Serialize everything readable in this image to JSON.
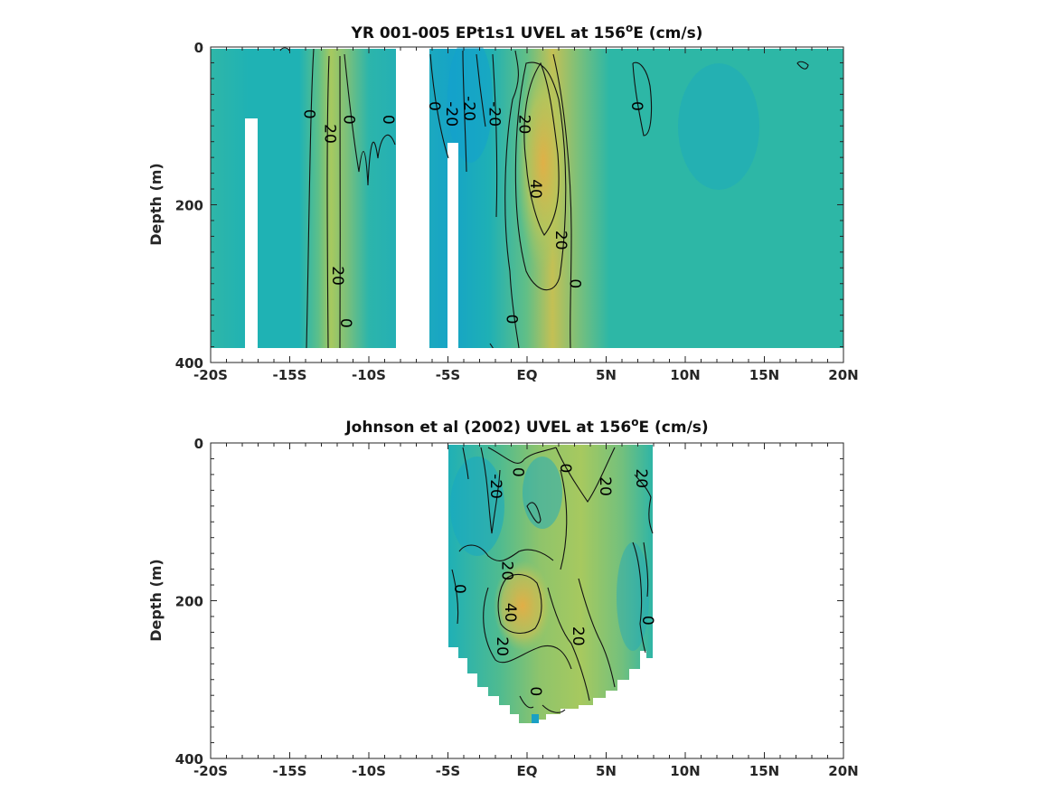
{
  "chart_data": [
    {
      "type": "heatmap",
      "title": "YR 001-005 EPt1s1 UVEL at 156",
      "title_sup": "o",
      "title_tail": "E (cm/s)",
      "ylabel": "Depth (m)",
      "xlabel": "",
      "xlim": [
        -20,
        20
      ],
      "ylim": [
        0,
        400
      ],
      "y_reversed": true,
      "x_ticks": [
        {
          "v": -20,
          "label": "-20S"
        },
        {
          "v": -15,
          "label": "-15S"
        },
        {
          "v": -10,
          "label": "-10S"
        },
        {
          "v": -5,
          "label": "-5S"
        },
        {
          "v": 0,
          "label": "EQ"
        },
        {
          "v": 5,
          "label": "5N"
        },
        {
          "v": 10,
          "label": "10N"
        },
        {
          "v": 15,
          "label": "15N"
        },
        {
          "v": 20,
          "label": "20N"
        }
      ],
      "y_ticks": [
        {
          "v": 0,
          "label": "0"
        },
        {
          "v": 200,
          "label": "200"
        },
        {
          "v": 400,
          "label": "400"
        }
      ],
      "contour_levels": [
        -20,
        0,
        20,
        40
      ],
      "data_extent": {
        "x": [
          -20,
          20
        ],
        "depth": [
          0,
          380
        ]
      },
      "missing_regions": [
        {
          "x": [
            -17.9,
            -17.1
          ],
          "depth": [
            90,
            380
          ]
        },
        {
          "x": [
            -8.3,
            -6.2
          ],
          "depth": [
            0,
            380
          ]
        },
        {
          "x": [
            -5.0,
            -4.4
          ],
          "depth": [
            120,
            380
          ]
        }
      ],
      "contour_labels": [
        {
          "x": -12.5,
          "depth": 110,
          "text": "20"
        },
        {
          "x": -13.8,
          "depth": 85,
          "text": "0"
        },
        {
          "x": -11.3,
          "depth": 92,
          "text": "0"
        },
        {
          "x": -8.8,
          "depth": 92,
          "text": "0"
        },
        {
          "x": -12.0,
          "depth": 290,
          "text": "20"
        },
        {
          "x": -11.5,
          "depth": 350,
          "text": "0"
        },
        {
          "x": -5.9,
          "depth": 75,
          "text": "0"
        },
        {
          "x": -3.7,
          "depth": 78,
          "text": "-20"
        },
        {
          "x": -4.8,
          "depth": 85,
          "text": "-20"
        },
        {
          "x": -2.1,
          "depth": 85,
          "text": "-20"
        },
        {
          "x": -0.2,
          "depth": 98,
          "text": "20"
        },
        {
          "x": 0.5,
          "depth": 180,
          "text": "40"
        },
        {
          "x": 2.1,
          "depth": 245,
          "text": "20"
        },
        {
          "x": 3.0,
          "depth": 300,
          "text": "0"
        },
        {
          "x": -1.0,
          "depth": 345,
          "text": "0"
        },
        {
          "x": 6.9,
          "depth": 75,
          "text": "0"
        }
      ]
    },
    {
      "type": "heatmap",
      "title": "Johnson et al (2002) UVEL at 156",
      "title_sup": "o",
      "title_tail": "E (cm/s)",
      "ylabel": "Depth (m)",
      "xlabel": "",
      "xlim": [
        -20,
        20
      ],
      "ylim": [
        0,
        400
      ],
      "y_reversed": true,
      "x_ticks": [
        {
          "v": -20,
          "label": "-20S"
        },
        {
          "v": -15,
          "label": "-15S"
        },
        {
          "v": -10,
          "label": "-10S"
        },
        {
          "v": -5,
          "label": "-5S"
        },
        {
          "v": 0,
          "label": "EQ"
        },
        {
          "v": 5,
          "label": "5N"
        },
        {
          "v": 10,
          "label": "10N"
        },
        {
          "v": 15,
          "label": "15N"
        },
        {
          "v": 20,
          "label": "20N"
        }
      ],
      "y_ticks": [
        {
          "v": 0,
          "label": "0"
        },
        {
          "v": 200,
          "label": "200"
        },
        {
          "v": 400,
          "label": "400"
        }
      ],
      "contour_levels": [
        -20,
        0,
        20,
        40
      ],
      "data_extent": {
        "x": [
          -5,
          8
        ],
        "depth": [
          0,
          360
        ]
      },
      "contour_labels": [
        {
          "x": -2.0,
          "depth": 55,
          "text": "-20"
        },
        {
          "x": -0.6,
          "depth": 37,
          "text": "0"
        },
        {
          "x": 2.4,
          "depth": 32,
          "text": "0"
        },
        {
          "x": 4.9,
          "depth": 55,
          "text": "20"
        },
        {
          "x": 7.2,
          "depth": 45,
          "text": "20"
        },
        {
          "x": -1.3,
          "depth": 162,
          "text": "20"
        },
        {
          "x": -4.3,
          "depth": 185,
          "text": "0"
        },
        {
          "x": -1.1,
          "depth": 215,
          "text": "40"
        },
        {
          "x": -1.6,
          "depth": 258,
          "text": "20"
        },
        {
          "x": 3.2,
          "depth": 245,
          "text": "20"
        },
        {
          "x": 7.6,
          "depth": 225,
          "text": "0"
        },
        {
          "x": 0.5,
          "depth": 315,
          "text": "0"
        }
      ]
    }
  ]
}
